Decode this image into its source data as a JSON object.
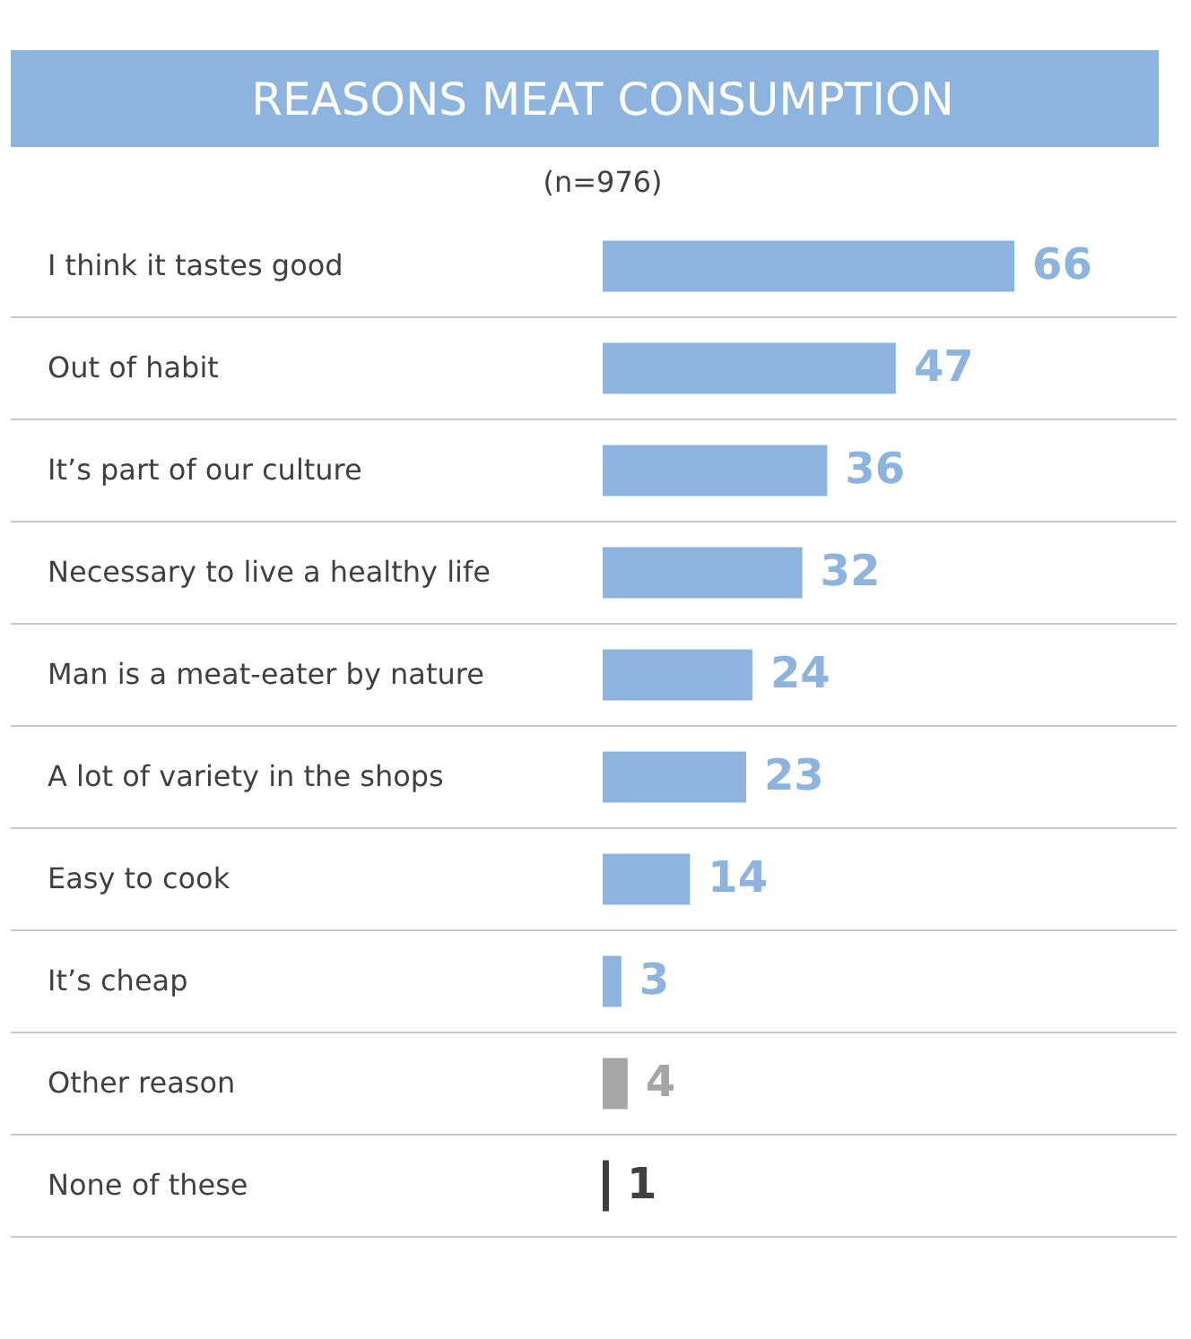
{
  "chart_data": {
    "type": "bar",
    "orientation": "horizontal",
    "title": "REASONS MEAT CONSUMPTION",
    "subtitle": "(n=976)",
    "categories": [
      "I think it tastes good",
      "Out of habit",
      "It’s part of our culture",
      "Necessary to live a healthy life",
      "Man is a meat-eater by nature",
      "A lot of variety in the shops",
      "Easy to cook",
      "It’s cheap",
      "Other reason",
      "None of these"
    ],
    "values": [
      66,
      47,
      36,
      32,
      24,
      23,
      14,
      3,
      4,
      1
    ],
    "colors": [
      "#8db4df",
      "#8db4df",
      "#8db4df",
      "#8db4df",
      "#8db4df",
      "#8db4df",
      "#8db4df",
      "#8db4df",
      "#a6a6a6",
      "#404040"
    ],
    "data_labels": true,
    "grid": "y"
  }
}
